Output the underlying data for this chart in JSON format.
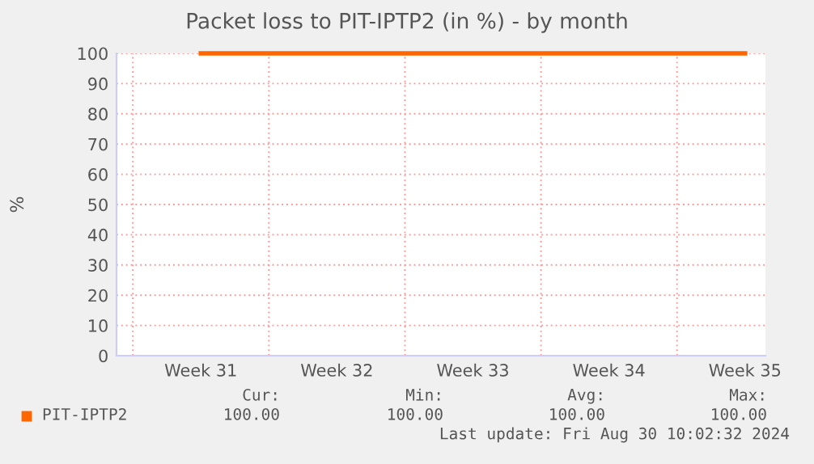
{
  "chart_data": {
    "type": "line",
    "title": "Packet loss to PIT-IPTP2 (in %) - by month",
    "ylabel": "%",
    "series": [
      {
        "name": "PIT-IPTP2",
        "color": "#ff6600",
        "values": [
          100,
          100,
          100,
          100,
          100
        ]
      }
    ],
    "categories": [
      "Week 31",
      "Week 32",
      "Week 33",
      "Week 34",
      "Week 35"
    ],
    "ylim": [
      0,
      100
    ],
    "yticks": [
      0,
      10,
      20,
      30,
      40,
      50,
      60,
      70,
      80,
      90,
      100
    ],
    "grid": true,
    "legend": "bottom",
    "marker": "none",
    "line_style": "solid",
    "annotations": [
      "Cur:",
      "Min:",
      "Avg:",
      "Max:",
      "100.00",
      "100.00",
      "100.00",
      "100.00",
      "Last update: Fri Aug 30 10:02:32 2024"
    ]
  }
}
